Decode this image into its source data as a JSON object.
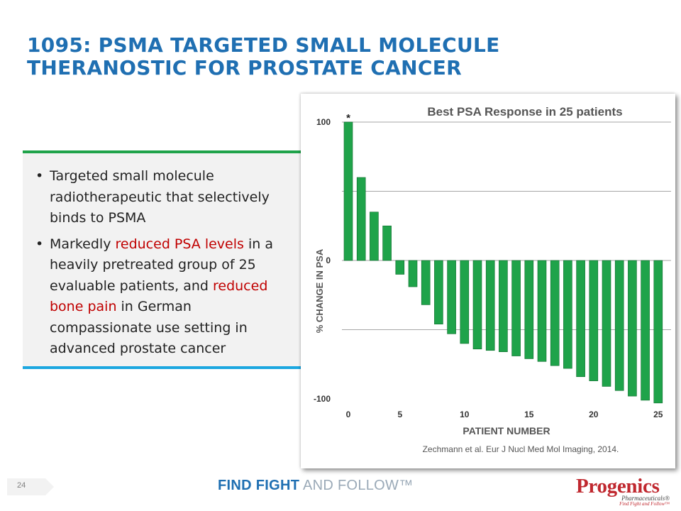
{
  "slide": {
    "title_line1": "1095: PSMA TARGETED SMALL MOLECULE",
    "title_line2": "THERANOSTIC FOR PROSTATE CANCER",
    "page_number": "24"
  },
  "bullets": {
    "b1": "Targeted small molecule radiotherapeutic that selectively binds to PSMA",
    "b2_pre": "Markedly ",
    "b2_red1": "reduced PSA levels",
    "b2_mid": " in a heavily pretreated group of 25 evaluable patients, and ",
    "b2_red2": "reduced bone pain",
    "b2_post": " in German compassionate use setting in advanced prostate cancer",
    "bullet_glyph": "•"
  },
  "footer": {
    "tagline_bold": "FIND FIGHT",
    "tagline_rest": " AND FOLLOW™",
    "logo_name": "Progenics",
    "logo_sub": "Pharmaceuticals®",
    "logo_tag": "Find Fight and Follow™"
  },
  "colors": {
    "title": "#1f6fb2",
    "bar_fill": "#1fa34a",
    "bar_stroke": "#0e6b2c",
    "accent_red": "#c00000"
  },
  "chart_data": {
    "type": "bar",
    "title": "Best PSA Response in 25 patients",
    "xlabel": "PATIENT NUMBER",
    "ylabel": "% CHANGE IN PSA",
    "ylim": [
      -100,
      100
    ],
    "y_ticks": [
      {
        "value": 100,
        "label": "100"
      },
      {
        "value": 0,
        "label": "0"
      },
      {
        "value": -100,
        "label": "-100"
      }
    ],
    "gridlines": [
      100,
      50,
      0,
      -50
    ],
    "x_ticks": [
      {
        "index": 1,
        "label": "0"
      },
      {
        "index": 5,
        "label": "5"
      },
      {
        "index": 10,
        "label": "10"
      },
      {
        "index": 15,
        "label": "15"
      },
      {
        "index": 20,
        "label": "20"
      },
      {
        "index": 25,
        "label": "25"
      }
    ],
    "patients": [
      1,
      2,
      3,
      4,
      5,
      6,
      7,
      8,
      9,
      10,
      11,
      12,
      13,
      14,
      15,
      16,
      17,
      18,
      19,
      20,
      21,
      22,
      23,
      24,
      25
    ],
    "values": [
      100,
      60,
      35,
      25,
      -10,
      -19,
      -32,
      -46,
      -53,
      -60,
      -64,
      -65,
      -66,
      -69,
      -71,
      -73,
      -76,
      -78,
      -84,
      -87,
      -91,
      -94,
      -98,
      -101,
      -103
    ],
    "annotation": {
      "index": 1,
      "text": "*"
    },
    "source": "Zechmann et al. Eur J Nucl Med Mol Imaging, 2014."
  }
}
